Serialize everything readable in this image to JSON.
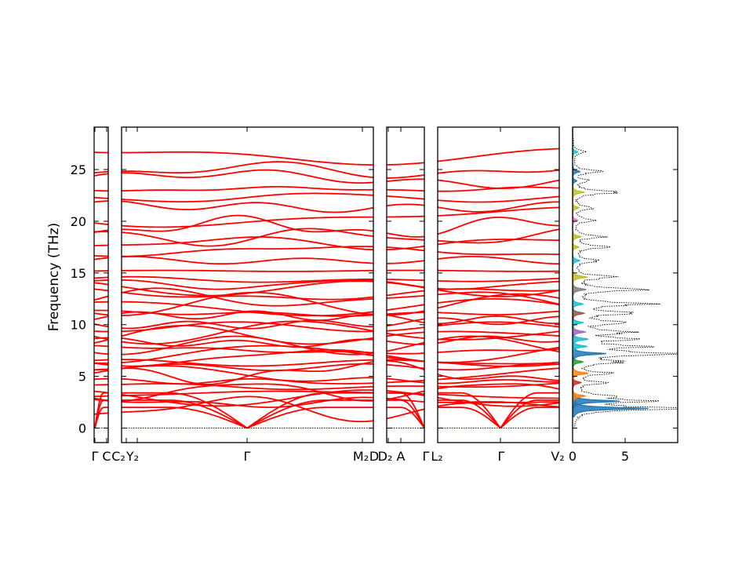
{
  "chart_data": {
    "type": "line",
    "ylabel": "Frequency (THz)",
    "ylim": [
      -1.4,
      29.1
    ],
    "yticks": [
      0,
      5,
      10,
      15,
      20,
      25
    ],
    "segments": [
      {
        "labels": [
          "Γ",
          "C"
        ]
      },
      {
        "labels": [
          "C₂",
          "Y₂",
          "Γ",
          "M₂",
          "D"
        ]
      },
      {
        "labels": [
          "D₂",
          "A",
          "Γ"
        ]
      },
      {
        "labels": [
          "L₂",
          "Γ",
          "V₂"
        ]
      }
    ],
    "dos": {
      "xlim": [
        0,
        10
      ],
      "xticks": [
        0,
        5
      ],
      "peaks": [
        {
          "f": 1.9,
          "total": 9.5,
          "partial": 7.2,
          "color": "#1f77b4"
        },
        {
          "f": 2.6,
          "total": 6.5,
          "partial": 4.5,
          "color": "#1f77b4"
        },
        {
          "f": 3.1,
          "total": 3.2,
          "partial": 1.2,
          "color": "#ff7f0e"
        },
        {
          "f": 4.4,
          "total": 2.6,
          "partial": 0.8,
          "color": "#d62728"
        },
        {
          "f": 5.3,
          "total": 3.4,
          "partial": 1.5,
          "color": "#ff7f0e"
        },
        {
          "f": 6.4,
          "total": 4.1,
          "partial": 1.0,
          "color": "#2ca02c"
        },
        {
          "f": 7.2,
          "total": 9.2,
          "partial": 3.2,
          "color": "#1f77b4"
        },
        {
          "f": 7.9,
          "total": 6.0,
          "partial": 1.4,
          "color": "#17becf"
        },
        {
          "f": 8.6,
          "total": 5.0,
          "partial": 1.5,
          "color": "#17becf"
        },
        {
          "f": 9.3,
          "total": 5.5,
          "partial": 1.2,
          "color": "#9467bd"
        },
        {
          "f": 10.2,
          "total": 4.8,
          "partial": 1.0,
          "color": "#17becf"
        },
        {
          "f": 11.1,
          "total": 5.5,
          "partial": 1.1,
          "color": "#8c564b"
        },
        {
          "f": 12.0,
          "total": 6.5,
          "partial": 1.0,
          "color": "#17becf"
        },
        {
          "f": 13.4,
          "total": 6.2,
          "partial": 1.3,
          "color": "#7f7f7f"
        },
        {
          "f": 14.6,
          "total": 4.0,
          "partial": 1.4,
          "color": "#bcbd22"
        },
        {
          "f": 16.2,
          "total": 2.4,
          "partial": 0.7,
          "color": "#17becf"
        },
        {
          "f": 17.5,
          "total": 3.2,
          "partial": 0.6,
          "color": "#bcbd22"
        },
        {
          "f": 18.5,
          "total": 2.6,
          "partial": 0.8,
          "color": "#bcbd22"
        },
        {
          "f": 20.1,
          "total": 2.2,
          "partial": 0.5,
          "color": "#e377c2"
        },
        {
          "f": 21.3,
          "total": 2.0,
          "partial": 0.6,
          "color": "#bcbd22"
        },
        {
          "f": 22.8,
          "total": 4.3,
          "partial": 1.1,
          "color": "#bcbd22"
        },
        {
          "f": 23.9,
          "total": 1.4,
          "partial": 0.4,
          "color": "#1f77b4"
        },
        {
          "f": 24.8,
          "total": 2.6,
          "partial": 0.7,
          "color": "#1f77b4"
        },
        {
          "f": 26.7,
          "total": 1.2,
          "partial": 0.5,
          "color": "#17becf"
        }
      ]
    },
    "colors": {
      "bands": "#ff0000",
      "zero_line": "#0000cc",
      "dos_total": "#000000"
    }
  }
}
